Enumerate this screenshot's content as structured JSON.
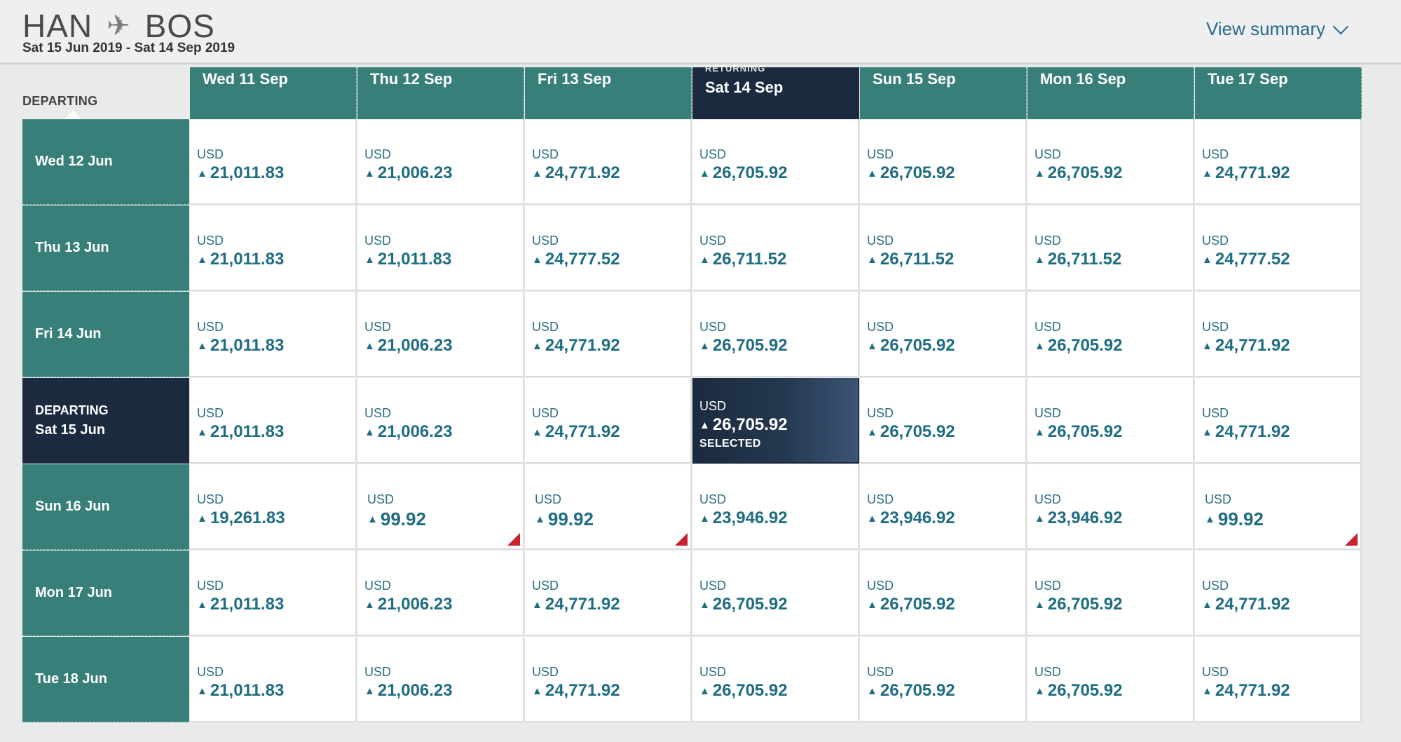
{
  "header": {
    "origin": "HAN",
    "destination": "BOS",
    "plane_icon": "airplane-icon",
    "date_range": "Sat 15 Jun 2019 - Sat 14 Sep 2019",
    "view_summary": "View summary"
  },
  "departing_label": "DEPARTING",
  "returning_label": "RETURNING",
  "selected_label": "SELECTED",
  "columns": [
    "Wed 11 Sep",
    "Thu 12 Sep",
    "Fri 13 Sep",
    "Sat 14 Sep",
    "Sun 15 Sep",
    "Mon 16 Sep",
    "Tue 17 Sep"
  ],
  "rows": [
    {
      "label": "Wed 12 Jun",
      "prices": [
        "21,011.83",
        "21,006.23",
        "24,771.92",
        "26,705.92",
        "26,705.92",
        "26,705.92",
        "24,771.92"
      ]
    },
    {
      "label": "Thu 13 Jun",
      "prices": [
        "21,011.83",
        "21,011.83",
        "24,777.52",
        "26,711.52",
        "26,711.52",
        "26,711.52",
        "24,777.52"
      ]
    },
    {
      "label": "Fri 14 Jun",
      "prices": [
        "21,011.83",
        "21,006.23",
        "24,771.92",
        "26,705.92",
        "26,705.92",
        "26,705.92",
        "24,771.92"
      ]
    },
    {
      "label": "Sat 15 Jun",
      "prices": [
        "21,011.83",
        "21,006.23",
        "24,771.92",
        "26,705.92",
        "26,705.92",
        "26,705.92",
        "24,771.92"
      ]
    },
    {
      "label": "Sun 16 Jun",
      "prices": [
        "19,261.83",
        "99.92",
        "99.92",
        "23,946.92",
        "23,946.92",
        "23,946.92",
        "99.92"
      ]
    },
    {
      "label": "Mon 17 Jun",
      "prices": [
        "21,011.83",
        "21,006.23",
        "24,771.92",
        "26,705.92",
        "26,705.92",
        "26,705.92",
        "24,771.92"
      ]
    },
    {
      "label": "Tue 18 Jun",
      "prices": [
        "21,011.83",
        "21,006.23",
        "24,771.92",
        "26,705.92",
        "26,705.92",
        "26,705.92",
        "24,771.92"
      ]
    }
  ],
  "currency": "USD",
  "selected": {
    "row": 3,
    "col": 3
  },
  "deal_cells": [
    [
      4,
      1
    ],
    [
      4,
      2
    ],
    [
      4,
      6
    ]
  ],
  "colors": {
    "teal": "#377f78",
    "navy": "#1b2a3f",
    "price": "#1f6d82",
    "deal_flag": "#c8202f"
  }
}
